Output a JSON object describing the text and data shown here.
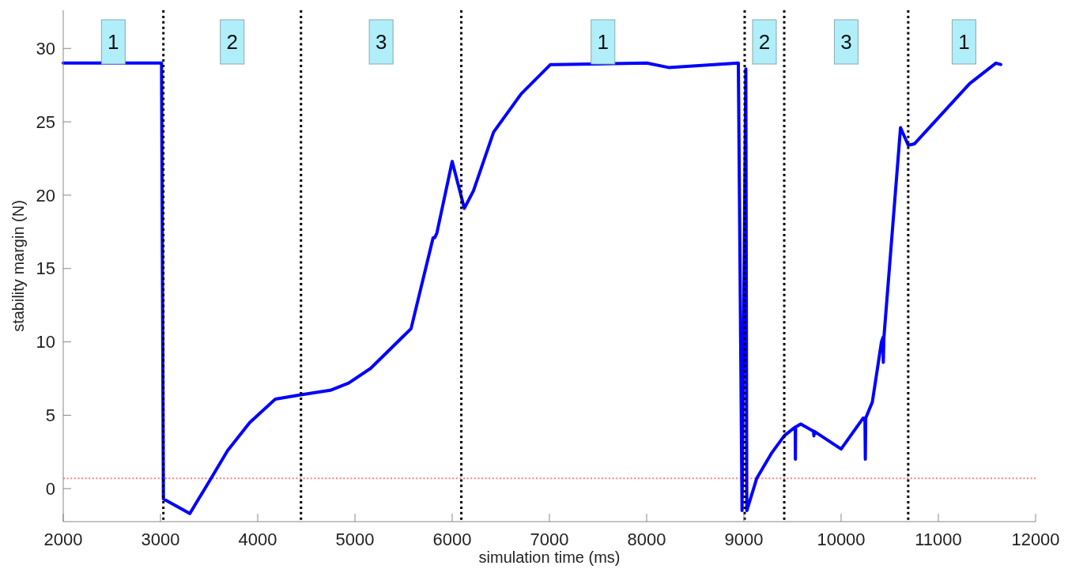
{
  "chart_data": {
    "type": "line",
    "xlabel": "simulation time (ms)",
    "ylabel": "stability margin (N)",
    "xlim": [
      2000,
      12000
    ],
    "xticks": [
      2000,
      3000,
      4000,
      5000,
      6000,
      7000,
      8000,
      9000,
      10000,
      11000,
      12000
    ],
    "ylim": [
      -2.25,
      32.6
    ],
    "yticks": [
      0,
      5,
      10,
      15,
      20,
      25,
      30
    ],
    "grid": false,
    "marker": "none",
    "line_style": "solid",
    "series": [
      {
        "color": "#0000ff",
        "x": [
          2000,
          3011,
          3030,
          3302,
          3502,
          3691,
          3917,
          4181,
          4445,
          4747,
          4936,
          5162,
          5577,
          5804,
          5820,
          5842,
          6000,
          6125,
          6219,
          6426,
          6709,
          7011,
          7057,
          8000,
          8226,
          8943,
          8981,
          9020,
          9030,
          9132,
          9283,
          9415,
          9528,
          9530,
          9532,
          9585,
          9717,
          9720,
          9725,
          10000,
          10226,
          10245,
          10249,
          10253,
          10321,
          10415,
          10430,
          10434,
          10440,
          10611,
          10690,
          10755,
          11321,
          11592,
          11642
        ],
        "values": [
          29,
          29,
          -0.7,
          -1.7,
          0.5,
          2.6,
          4.5,
          6.1,
          6.4,
          6.7,
          7.2,
          8.2,
          10.9,
          17.1,
          17.1,
          17.4,
          22.3,
          19.1,
          20.3,
          24.3,
          26.9,
          28.9,
          28.9,
          29,
          28.7,
          29,
          -1.5,
          28.6,
          -1.5,
          0.7,
          2.4,
          3.6,
          4.2,
          2,
          4.2,
          4.4,
          3.9,
          3.6,
          3.9,
          2.7,
          4.8,
          4.8,
          2,
          4.8,
          5.9,
          10,
          10.3,
          8.6,
          10.3,
          24.6,
          23.4,
          23.5,
          27.6,
          29,
          28.9
        ]
      }
    ],
    "ref_lines": [
      {
        "axis": "x",
        "value": 3030,
        "color": "#000000",
        "line_style": "dotted"
      },
      {
        "axis": "x",
        "value": 4445,
        "color": "#000000",
        "line_style": "dotted"
      },
      {
        "axis": "x",
        "value": 6094,
        "color": "#000000",
        "line_style": "dotted"
      },
      {
        "axis": "x",
        "value": 9008,
        "color": "#000000",
        "line_style": "dotted"
      },
      {
        "axis": "x",
        "value": 9415,
        "color": "#000000",
        "line_style": "dotted"
      },
      {
        "axis": "x",
        "value": 10690,
        "color": "#000000",
        "line_style": "dotted"
      },
      {
        "axis": "y",
        "value": 0.7,
        "color": "#ff8080",
        "line_style": "dotted"
      }
    ],
    "annotations": [
      "1",
      "2",
      "3",
      "1",
      "2",
      "3",
      "1"
    ]
  }
}
